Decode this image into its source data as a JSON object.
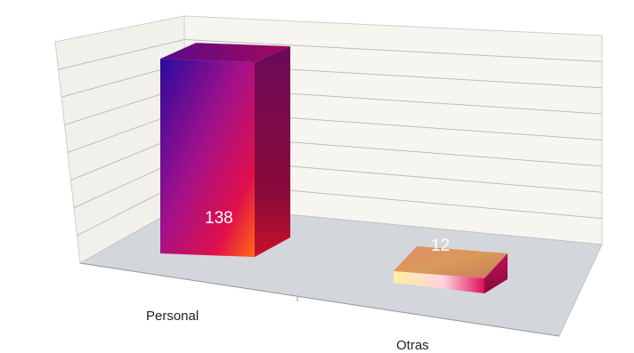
{
  "chart_data": {
    "type": "bar",
    "categories": [
      "Personal",
      "Otras"
    ],
    "values": [
      138,
      12
    ],
    "data_labels": [
      "138",
      "12"
    ],
    "title": "",
    "xlabel": "",
    "ylabel": "",
    "ylim": [
      0,
      160
    ],
    "grid": true,
    "legend": "none",
    "style": "3d-column"
  },
  "colors": {
    "bar_front_start": "#2a0a9e",
    "bar_front_mid": "#b2107a",
    "bar_front_end": "#ff1a10",
    "bar_side": "#7a0a55",
    "bar_top": "#8a0a60",
    "floor": "#d3d6da",
    "wall": "#f5f4ef",
    "gridline": "#b8b8b8"
  }
}
